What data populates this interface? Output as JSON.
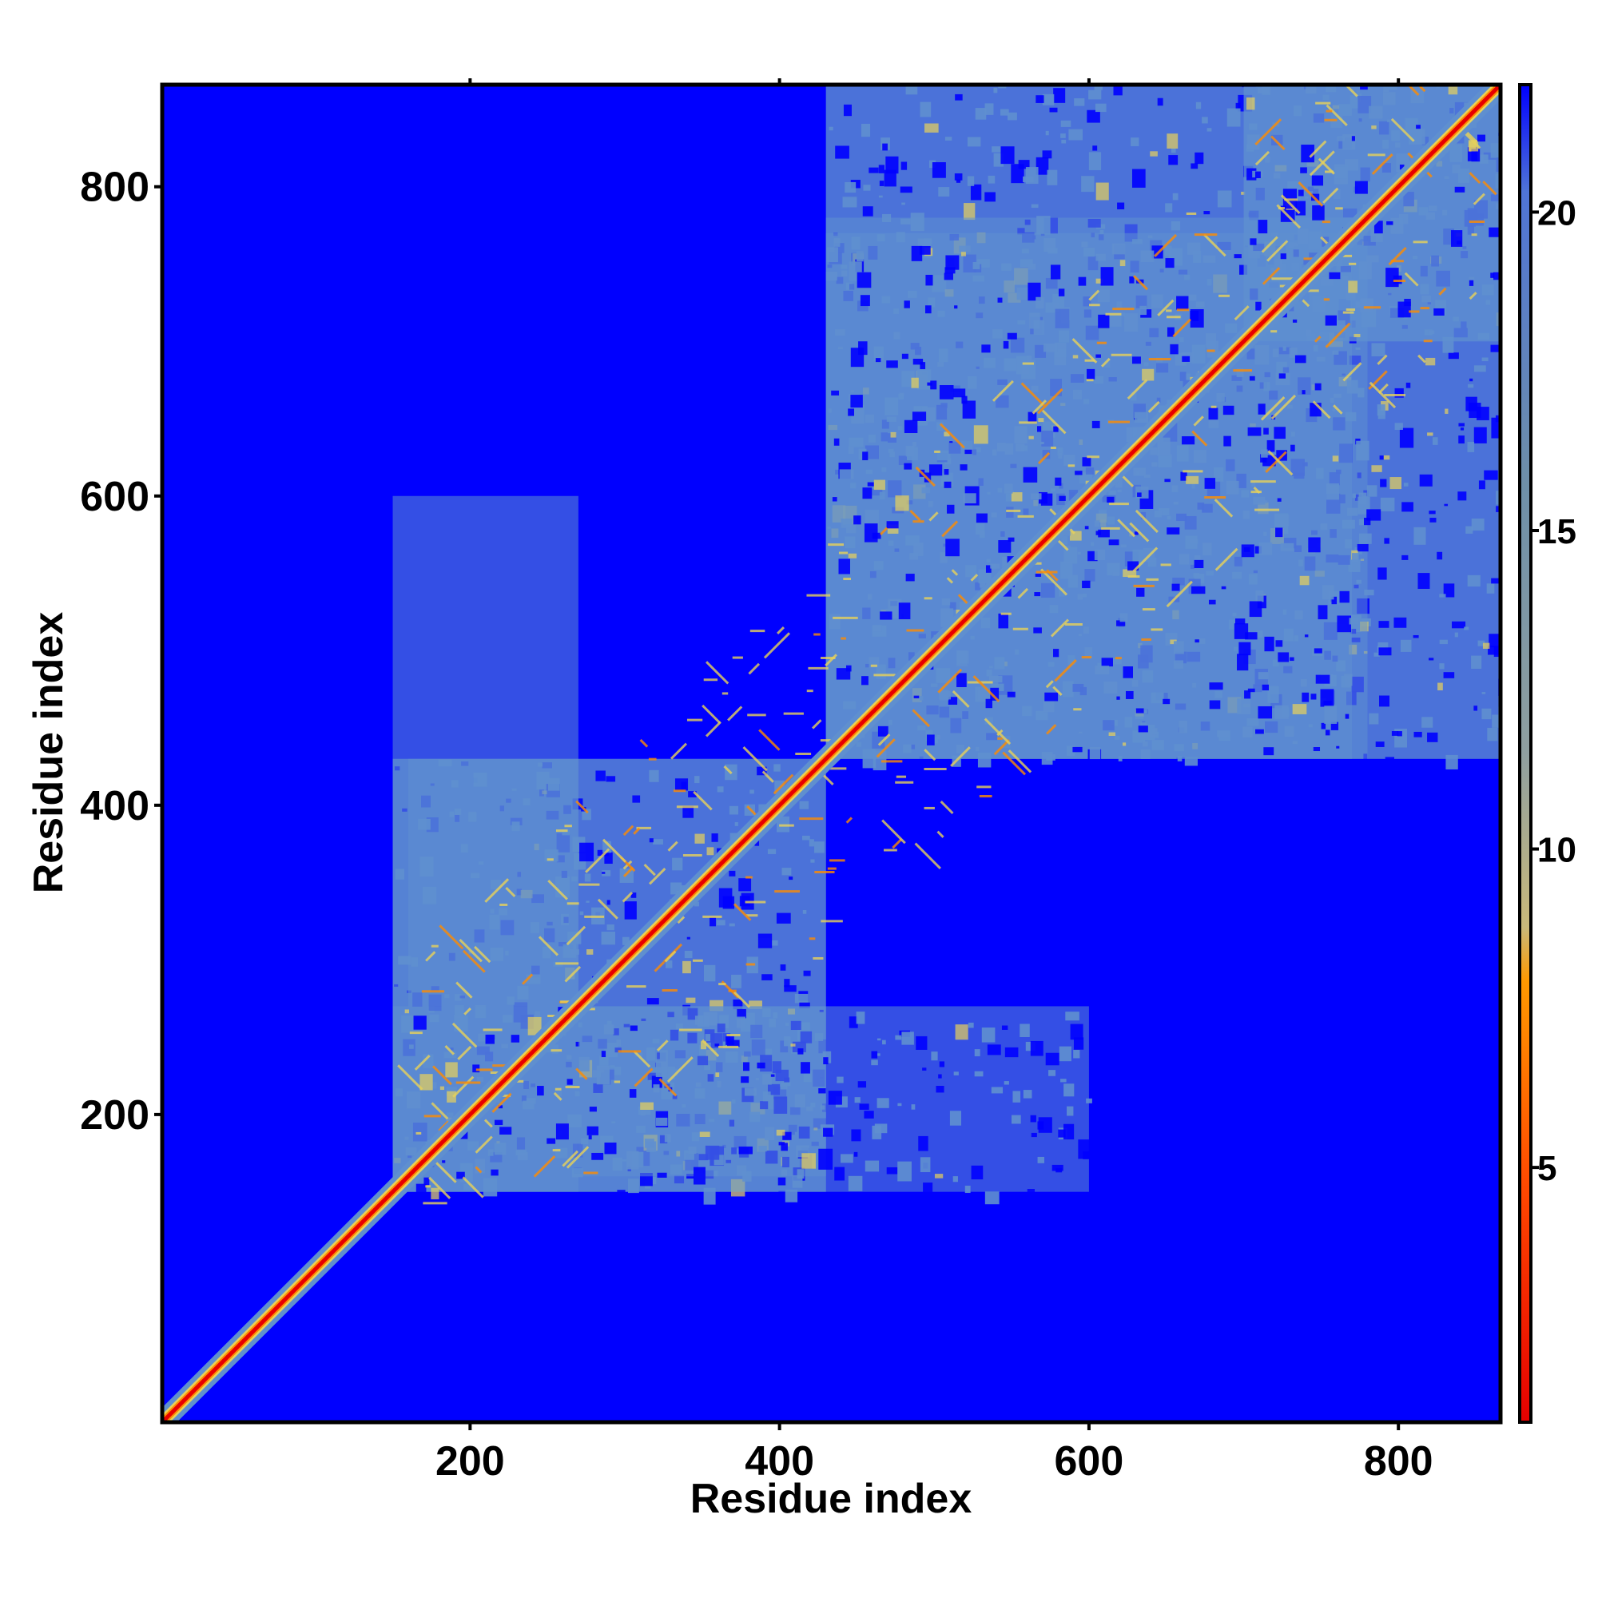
{
  "chart_data": {
    "type": "heatmap",
    "title": "",
    "xlabel": "Residue index",
    "ylabel": "Residue index",
    "xlim": [
      1,
      866
    ],
    "ylim": [
      1,
      866
    ],
    "x_ticks": [
      200,
      400,
      600,
      800
    ],
    "y_ticks": [
      200,
      400,
      600,
      800
    ],
    "colorbar": {
      "ticks": [
        5,
        10,
        15,
        20
      ],
      "range": [
        1,
        22
      ],
      "colors": {
        "near": "#e60000",
        "close": "#ff8c00",
        "mid": "#e8d25a",
        "far": "#5f8fcf",
        "background": "#0000ff"
      }
    },
    "diagonal_contact_bands": [
      {
        "from": 1,
        "to": 866,
        "value": 2
      }
    ],
    "contact_domains": [
      {
        "x": [
          150,
          430
        ],
        "y": [
          150,
          430
        ],
        "value": 17
      },
      {
        "x": [
          430,
          870
        ],
        "y": [
          430,
          870
        ],
        "value": 17
      },
      {
        "x": [
          150,
          600
        ],
        "y": [
          150,
          270
        ],
        "value": 17
      },
      {
        "x": [
          270,
          430
        ],
        "y": [
          160,
          270
        ],
        "value": 18
      },
      {
        "x": [
          430,
          780
        ],
        "y": [
          430,
          770
        ],
        "value": 17
      },
      {
        "x": [
          700,
          870
        ],
        "y": [
          700,
          870
        ],
        "value": 17
      }
    ]
  }
}
